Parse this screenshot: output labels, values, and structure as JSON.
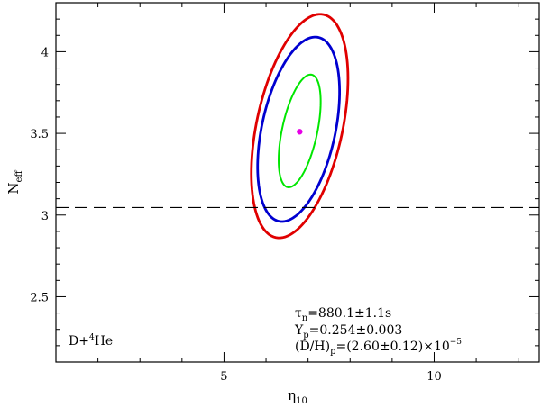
{
  "chart_data": {
    "type": "contour",
    "xlabel": "η",
    "xlabel_sub": "10",
    "ylabel": "N",
    "ylabel_sub": "eff",
    "xlim": [
      1.0,
      12.5
    ],
    "ylim": [
      2.1,
      4.3
    ],
    "x_ticks": [
      5,
      10
    ],
    "x_tick_labels": [
      "5",
      "10"
    ],
    "y_ticks": [
      2.5,
      3,
      3.5,
      4
    ],
    "y_tick_labels": [
      "2.5",
      "3",
      "3.5",
      "4"
    ],
    "grid": false,
    "best_fit": {
      "x": 6.8,
      "y": 3.51,
      "color": "#e600e6"
    },
    "reference_line": {
      "y": 3.046,
      "style": "dashed",
      "color": "#000000"
    },
    "contours": [
      {
        "color": "#e00000",
        "x_min": 5.65,
        "x_max": 7.95,
        "y_min": 2.86,
        "y_max": 4.23
      },
      {
        "color": "#0000d0",
        "x_min": 5.8,
        "x_max": 7.75,
        "y_min": 2.96,
        "y_max": 4.09
      },
      {
        "color": "#00e600",
        "x_min": 6.3,
        "x_max": 7.3,
        "y_min": 3.17,
        "y_max": 3.86
      }
    ],
    "annotation_left": {
      "text": "D+",
      "sup": "4",
      "tail": "He"
    },
    "annotations_right": [
      {
        "pre": "",
        "main": "τ",
        "sub": "n",
        "post": "=880.1±1.1s"
      },
      {
        "pre": "",
        "main": "Y",
        "sub": "p",
        "post": "=0.254±0.003"
      },
      {
        "pre": "",
        "main": "(D/H)",
        "sub": "p",
        "post": "=(2.60±0.12)×10",
        "sup": "−5"
      }
    ]
  }
}
